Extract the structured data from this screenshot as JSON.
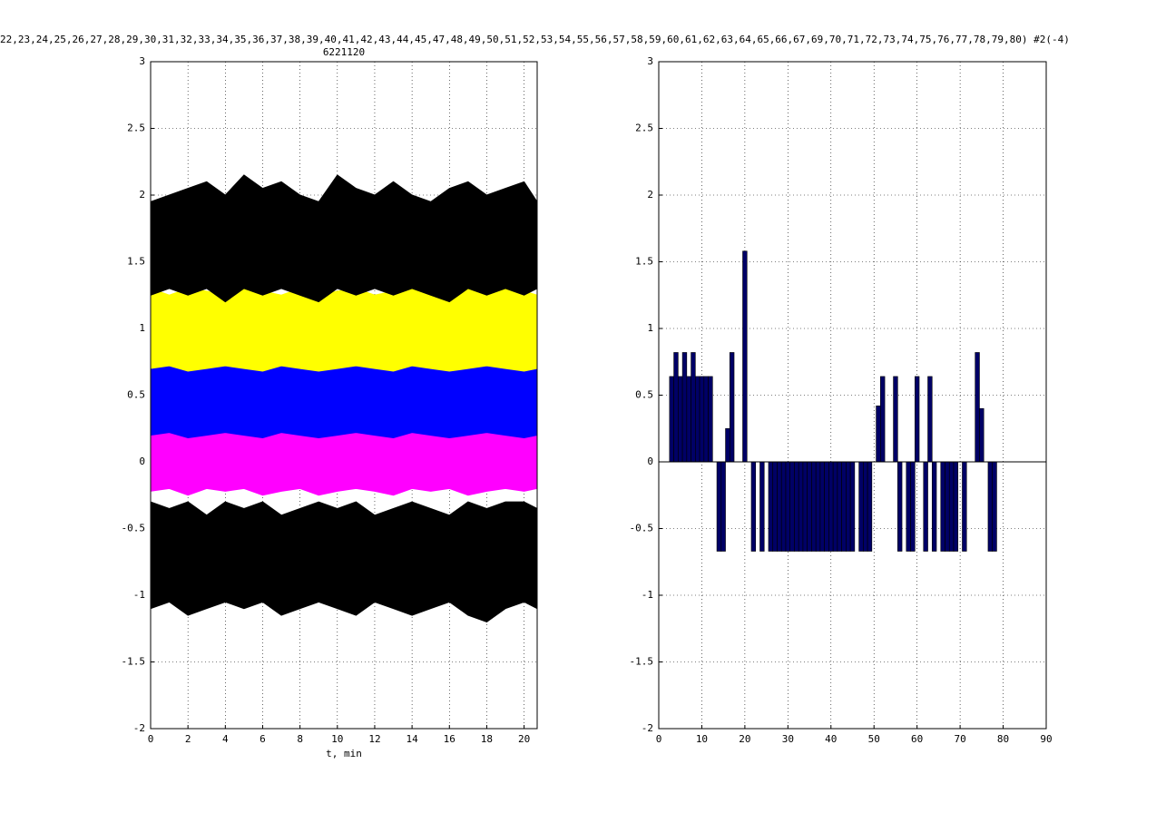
{
  "chart_data": [
    {
      "type": "area",
      "title": "22,23,24,25,26,27,28,29,30,31,32,33,34,35,36,37,38,39,40,41,42,43,44,45,47,48,49,50,51,52,53,54,55,56,57,58,59,60,61,62,63,64,65,66,67,69,70,71,72,73,74,75,76,77,78,79,80) #2(-4)",
      "subtitle": "6221120",
      "xlabel": "t, min",
      "x": [
        0,
        1,
        2,
        3,
        4,
        5,
        6,
        7,
        8,
        9,
        10,
        11,
        12,
        13,
        14,
        15,
        16,
        17,
        18,
        19,
        20,
        20.7
      ],
      "xlim": [
        0,
        20.7
      ],
      "xticks": [
        0,
        2,
        4,
        6,
        8,
        10,
        12,
        14,
        16,
        18,
        20
      ],
      "ylim": [
        -2,
        3
      ],
      "yticks": [
        -2,
        -1.5,
        -1,
        -0.5,
        0,
        0.5,
        1,
        1.5,
        2,
        2.5,
        3
      ],
      "grid": true,
      "series": [
        {
          "color": "#000000",
          "high": [
            -0.3,
            -0.35,
            -0.3,
            -0.4,
            -0.3,
            -0.35,
            -0.3,
            -0.4,
            -0.35,
            -0.3,
            -0.35,
            -0.3,
            -0.4,
            -0.35,
            -0.3,
            -0.35,
            -0.4,
            -0.3,
            -0.35,
            -0.3,
            -0.3,
            -0.35
          ],
          "low": [
            -1.1,
            -1.05,
            -1.15,
            -1.1,
            -1.05,
            -1.1,
            -1.05,
            -1.15,
            -1.1,
            -1.05,
            -1.1,
            -1.15,
            -1.05,
            -1.1,
            -1.15,
            -1.1,
            -1.05,
            -1.15,
            -1.2,
            -1.1,
            -1.05,
            -1.1
          ]
        },
        {
          "color": "#ff00ff",
          "high": [
            0.28,
            0.25,
            0.3,
            0.25,
            0.28,
            0.3,
            0.25,
            0.28,
            0.3,
            0.25,
            0.28,
            0.25,
            0.3,
            0.28,
            0.25,
            0.3,
            0.28,
            0.25,
            0.3,
            0.28,
            0.25,
            0.28
          ],
          "low": [
            -0.22,
            -0.2,
            -0.25,
            -0.2,
            -0.22,
            -0.2,
            -0.25,
            -0.22,
            -0.2,
            -0.25,
            -0.22,
            -0.2,
            -0.22,
            -0.25,
            -0.2,
            -0.22,
            -0.2,
            -0.25,
            -0.22,
            -0.2,
            -0.22,
            -0.2
          ]
        },
        {
          "color": "#0000ff",
          "high": [
            0.75,
            0.72,
            0.78,
            0.75,
            0.72,
            0.75,
            0.78,
            0.72,
            0.75,
            0.78,
            0.75,
            0.72,
            0.75,
            0.78,
            0.72,
            0.75,
            0.78,
            0.75,
            0.72,
            0.75,
            0.78,
            0.75
          ],
          "low": [
            0.2,
            0.22,
            0.18,
            0.2,
            0.22,
            0.2,
            0.18,
            0.22,
            0.2,
            0.18,
            0.2,
            0.22,
            0.2,
            0.18,
            0.22,
            0.2,
            0.18,
            0.2,
            0.22,
            0.2,
            0.18,
            0.2
          ]
        },
        {
          "color": "#ffff00",
          "high": [
            1.3,
            1.25,
            1.3,
            1.28,
            1.25,
            1.3,
            1.28,
            1.25,
            1.3,
            1.25,
            1.28,
            1.3,
            1.25,
            1.28,
            1.3,
            1.25,
            1.28,
            1.3,
            1.25,
            1.3,
            1.28,
            1.25
          ],
          "low": [
            0.7,
            0.72,
            0.68,
            0.7,
            0.72,
            0.7,
            0.68,
            0.72,
            0.7,
            0.68,
            0.7,
            0.72,
            0.7,
            0.68,
            0.72,
            0.7,
            0.68,
            0.7,
            0.72,
            0.7,
            0.68,
            0.7
          ]
        },
        {
          "color": "#000000",
          "high": [
            1.95,
            2.0,
            2.05,
            2.1,
            2.0,
            2.15,
            2.05,
            2.1,
            2.0,
            1.95,
            2.15,
            2.05,
            2.0,
            2.1,
            2.0,
            1.95,
            2.05,
            2.1,
            2.0,
            2.05,
            2.1,
            1.95
          ],
          "low": [
            1.25,
            1.3,
            1.25,
            1.3,
            1.2,
            1.3,
            1.25,
            1.3,
            1.25,
            1.2,
            1.3,
            1.25,
            1.3,
            1.25,
            1.3,
            1.25,
            1.2,
            1.3,
            1.25,
            1.3,
            1.25,
            1.3
          ]
        }
      ]
    },
    {
      "type": "bar",
      "color": "#000066",
      "x": [
        1,
        2,
        3,
        4,
        5,
        6,
        7,
        8,
        9,
        10,
        11,
        12,
        13,
        14,
        15,
        16,
        17,
        18,
        19,
        20,
        21,
        22,
        23,
        24,
        25,
        26,
        27,
        28,
        29,
        30,
        31,
        32,
        33,
        34,
        35,
        36,
        37,
        38,
        39,
        40,
        41,
        42,
        43,
        44,
        45,
        46,
        47,
        48,
        49,
        50,
        51,
        52,
        53,
        54,
        55,
        56,
        57,
        58,
        59,
        60,
        61,
        62,
        63,
        64,
        65,
        66,
        67,
        68,
        69,
        70,
        71,
        72,
        73,
        74,
        75,
        76,
        77,
        78,
        79,
        80
      ],
      "values": [
        0,
        0,
        0.64,
        0.82,
        0.64,
        0.82,
        0.64,
        0.82,
        0.64,
        0.64,
        0.64,
        0.64,
        0,
        -0.67,
        -0.67,
        0.25,
        0.82,
        0,
        0,
        1.58,
        0,
        -0.67,
        0,
        -0.67,
        0,
        -0.67,
        -0.67,
        -0.67,
        -0.67,
        -0.67,
        -0.67,
        -0.67,
        -0.67,
        -0.67,
        -0.67,
        -0.67,
        -0.67,
        -0.67,
        -0.67,
        -0.67,
        -0.67,
        -0.67,
        -0.67,
        -0.67,
        -0.67,
        0,
        -0.67,
        -0.67,
        -0.67,
        0,
        0.42,
        0.64,
        0,
        0,
        0.64,
        -0.67,
        0,
        -0.67,
        -0.67,
        0.64,
        0,
        -0.67,
        0.64,
        -0.67,
        0,
        -0.67,
        -0.67,
        -0.67,
        -0.67,
        0,
        -0.67,
        0,
        0,
        0.82,
        0.4,
        0,
        -0.67,
        -0.67,
        0,
        0
      ],
      "xlim": [
        0,
        90
      ],
      "xticks": [
        0,
        10,
        20,
        30,
        40,
        50,
        60,
        70,
        80,
        90
      ],
      "ylim": [
        -2,
        3
      ],
      "yticks": [
        -2,
        -1.5,
        -1,
        -0.5,
        0,
        0.5,
        1,
        1.5,
        2,
        2.5,
        3
      ],
      "grid": true
    }
  ]
}
